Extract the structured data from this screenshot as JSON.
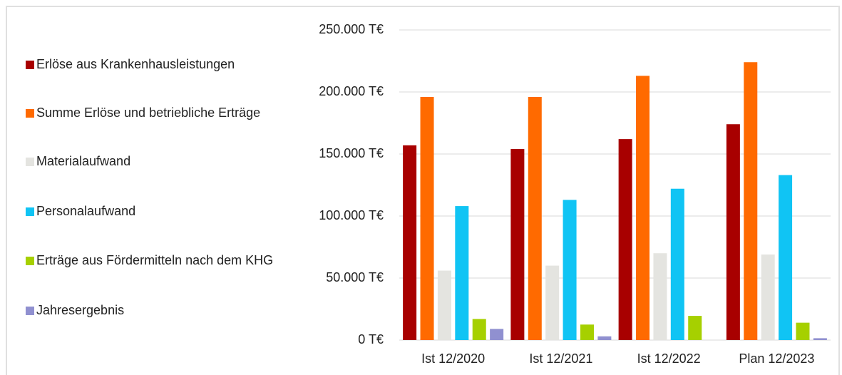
{
  "chart_data": {
    "type": "bar",
    "categories": [
      "Ist 12/2020",
      "Ist 12/2021",
      "Ist 12/2022",
      "Plan 12/2023"
    ],
    "series": [
      {
        "name": "Erlöse aus Krankenhausleistungen",
        "color": "#a80000",
        "values": [
          157000,
          154000,
          162000,
          174000
        ]
      },
      {
        "name": "Summe Erlöse und betriebliche Erträge",
        "color": "#ff6a00",
        "values": [
          196000,
          196000,
          213000,
          224000
        ]
      },
      {
        "name": "Materialaufwand",
        "color": "#e4e4e0",
        "values": [
          56000,
          60000,
          70000,
          69000
        ]
      },
      {
        "name": "Personalaufwand",
        "color": "#10c4f4",
        "values": [
          108000,
          113000,
          122000,
          133000
        ]
      },
      {
        "name": "Erträge aus Fördermitteln nach dem KHG",
        "color": "#a6d000",
        "values": [
          17000,
          12500,
          19500,
          14000
        ]
      },
      {
        "name": "Jahresergebnis",
        "color": "#9090d0",
        "values": [
          9000,
          3000,
          0,
          1500
        ]
      }
    ],
    "ylim": [
      0,
      250000
    ],
    "yticks": [
      {
        "value": 0,
        "label": "0 T€"
      },
      {
        "value": 50000,
        "label": "50.000 T€"
      },
      {
        "value": 100000,
        "label": "100.000 T€"
      },
      {
        "value": 150000,
        "label": "150.000 T€"
      },
      {
        "value": 200000,
        "label": "200.000 T€"
      },
      {
        "value": 250000,
        "label": "250.000 T€"
      }
    ],
    "grid": true,
    "legend": "left"
  }
}
